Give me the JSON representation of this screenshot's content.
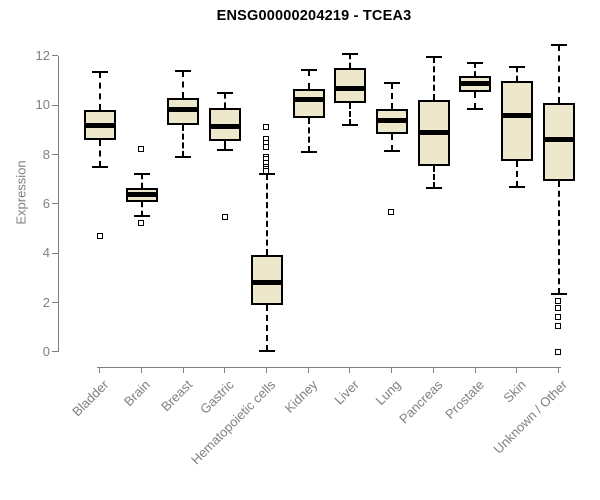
{
  "chart_data": {
    "type": "boxplot",
    "title": "ENSG00000204219 - TCEA3",
    "xlabel": "",
    "ylabel": "Expression",
    "ylim": [
      0,
      12.6
    ],
    "yticks": [
      0,
      2,
      4,
      6,
      8,
      10,
      12
    ],
    "grid": false,
    "legend": "none",
    "categories": [
      "Bladder",
      "Brain",
      "Breast",
      "Gastric",
      "Hematopoietic cells",
      "Kidney",
      "Liver",
      "Lung",
      "Pancreas",
      "Prostate",
      "Skin",
      "Unknown / Other"
    ],
    "series": [
      {
        "name": "Bladder",
        "whisker_low": 7.5,
        "q1": 8.6,
        "median": 9.2,
        "q3": 9.8,
        "whisker_high": 11.35,
        "outliers": [
          4.7
        ]
      },
      {
        "name": "Brain",
        "whisker_low": 5.5,
        "q1": 6.1,
        "median": 6.4,
        "q3": 6.65,
        "whisker_high": 7.2,
        "outliers": [
          8.2,
          5.2
        ]
      },
      {
        "name": "Breast",
        "whisker_low": 7.9,
        "q1": 9.2,
        "median": 9.85,
        "q3": 10.3,
        "whisker_high": 11.4,
        "outliers": []
      },
      {
        "name": "Gastric",
        "whisker_low": 8.2,
        "q1": 8.55,
        "median": 9.15,
        "q3": 9.9,
        "whisker_high": 10.5,
        "outliers": [
          5.45
        ]
      },
      {
        "name": "Hematopoietic cells",
        "whisker_low": 0.05,
        "q1": 1.9,
        "median": 2.8,
        "q3": 3.95,
        "whisker_high": 7.2,
        "outliers": [
          9.1,
          8.6,
          8.45,
          8.3,
          7.9,
          7.8,
          7.65,
          7.5,
          7.4,
          7.3
        ]
      },
      {
        "name": "Kidney",
        "whisker_low": 8.1,
        "q1": 9.5,
        "median": 10.25,
        "q3": 10.65,
        "whisker_high": 11.45,
        "outliers": []
      },
      {
        "name": "Liver",
        "whisker_low": 9.2,
        "q1": 10.1,
        "median": 10.7,
        "q3": 11.5,
        "whisker_high": 12.1,
        "outliers": []
      },
      {
        "name": "Lung",
        "whisker_low": 8.15,
        "q1": 8.85,
        "median": 9.4,
        "q3": 9.85,
        "whisker_high": 10.9,
        "outliers": [
          5.65
        ]
      },
      {
        "name": "Pancreas",
        "whisker_low": 6.65,
        "q1": 7.55,
        "median": 8.9,
        "q3": 10.2,
        "whisker_high": 11.95,
        "outliers": []
      },
      {
        "name": "Prostate",
        "whisker_low": 9.85,
        "q1": 10.55,
        "median": 10.9,
        "q3": 11.2,
        "whisker_high": 11.7,
        "outliers": []
      },
      {
        "name": "Skin",
        "whisker_low": 6.7,
        "q1": 7.75,
        "median": 9.6,
        "q3": 11.0,
        "whisker_high": 11.55,
        "outliers": []
      },
      {
        "name": "Unknown / Other",
        "whisker_low": 2.35,
        "q1": 6.95,
        "median": 8.6,
        "q3": 10.1,
        "whisker_high": 12.45,
        "outliers": [
          2.05,
          1.75,
          1.4,
          1.05,
          0
        ]
      }
    ],
    "colors": {
      "box_fill": "#EDE8CC",
      "box_border": "#000000",
      "median": "#000000",
      "axis": "#808080",
      "tick_text": "#808080",
      "title_text": "#000000"
    }
  }
}
